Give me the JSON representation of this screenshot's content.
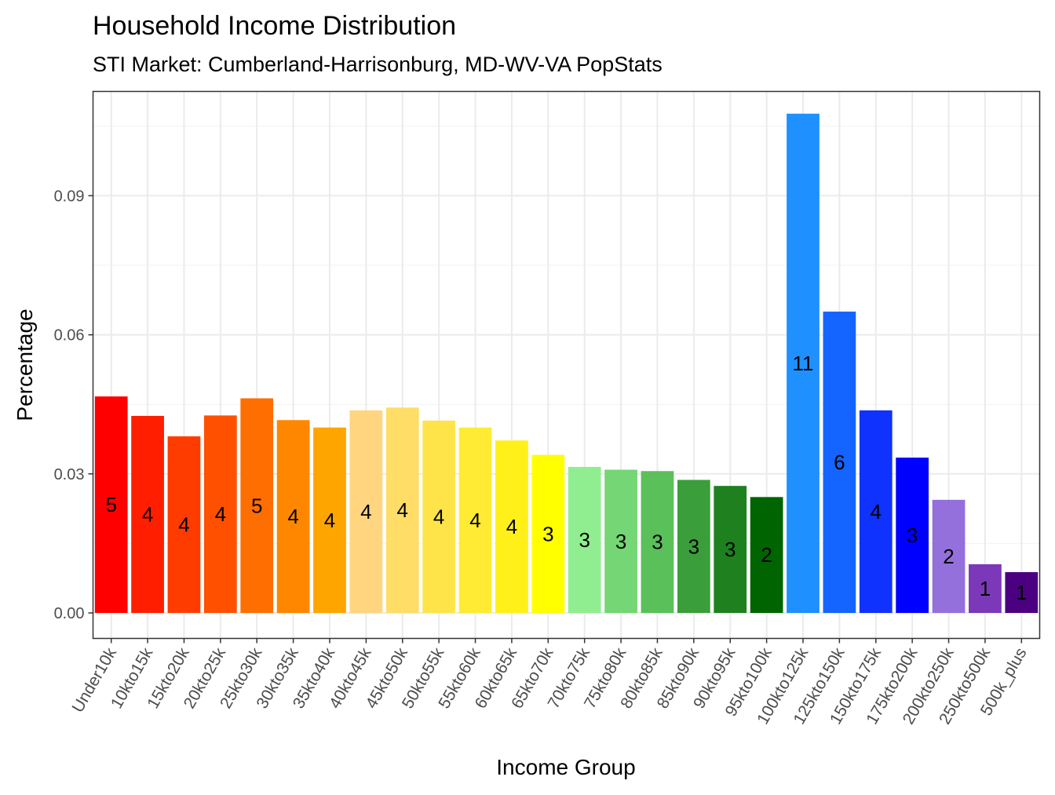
{
  "chart_data": {
    "type": "bar",
    "title": "Household Income Distribution",
    "subtitle": "STI Market: Cumberland-Harrisonburg, MD-WV-VA PopStats",
    "xlabel": "Income Group",
    "ylabel": "Percentage",
    "ylim": [
      -0.0055,
      0.1125
    ],
    "yticks": [
      0.0,
      0.03,
      0.06,
      0.09
    ],
    "ytick_labels": [
      "0.00",
      "0.03",
      "0.06",
      "0.09"
    ],
    "grid": true,
    "legend": "none",
    "categories": [
      "Under10k",
      "10kto15k",
      "15kto20k",
      "20kto25k",
      "25kto30k",
      "30kto35k",
      "35kto40k",
      "40kto45k",
      "45kto50k",
      "50kto55k",
      "55kto60k",
      "60kto65k",
      "65kto70k",
      "70kto75k",
      "75kto80k",
      "80kto85k",
      "85kto90k",
      "90kto95k",
      "95kto100k",
      "100kto125k",
      "125kto150k",
      "150kto175k",
      "175kto200k",
      "200kto250k",
      "250kto500k",
      "500k_plus"
    ],
    "values": [
      0.0467,
      0.0425,
      0.0381,
      0.0426,
      0.0463,
      0.0416,
      0.04,
      0.0437,
      0.0443,
      0.0415,
      0.04,
      0.0372,
      0.0341,
      0.0315,
      0.0309,
      0.0306,
      0.0287,
      0.0274,
      0.025,
      0.1077,
      0.065,
      0.0437,
      0.0335,
      0.0244,
      0.0105,
      0.0088
    ],
    "labels": [
      "5",
      "4",
      "4",
      "4",
      "5",
      "4",
      "4",
      "4",
      "4",
      "4",
      "4",
      "4",
      "3",
      "3",
      "3",
      "3",
      "3",
      "3",
      "2",
      "11",
      "6",
      "4",
      "3",
      "2",
      "1",
      "1"
    ],
    "colors": [
      "#FF0000",
      "#FF1E00",
      "#FF3C00",
      "#FF5000",
      "#FF6E00",
      "#FF8700",
      "#FFA500",
      "#FFD580",
      "#FFDD66",
      "#FFE449",
      "#FFEB33",
      "#FFF01A",
      "#FFFF00",
      "#90EE90",
      "#74D674",
      "#5AC05A",
      "#3A9E3A",
      "#1E801E",
      "#006400",
      "#1E90FF",
      "#1464FF",
      "#0F32FF",
      "#0000FF",
      "#9370DB",
      "#7B38B8",
      "#4B0082"
    ]
  }
}
